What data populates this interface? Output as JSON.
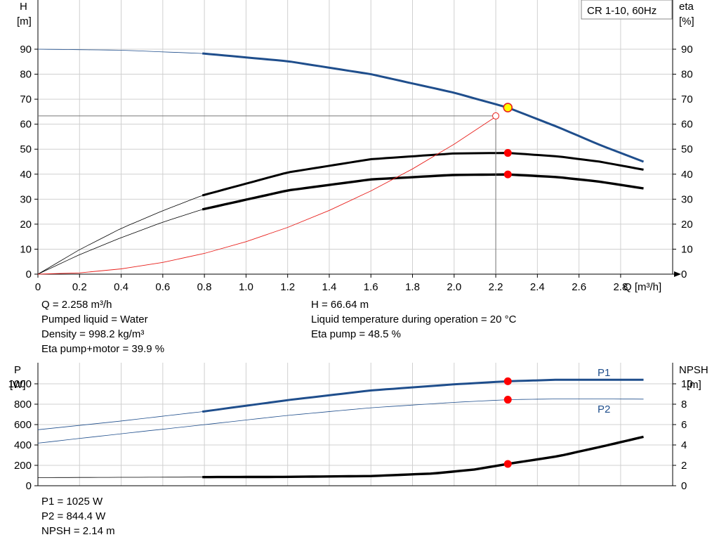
{
  "pump_label": "CR 1-10, 60Hz",
  "chart_data": [
    {
      "type": "line",
      "left_axis": {
        "label_top": "H",
        "label_unit": "[m]",
        "ylim": [
          0,
          100
        ],
        "ticks": [
          0,
          10,
          20,
          30,
          40,
          50,
          60,
          70,
          80,
          90
        ]
      },
      "right_axis": {
        "label_top": "eta",
        "label_unit": "[%]",
        "ylim": [
          0,
          100
        ],
        "ticks": [
          0,
          10,
          20,
          30,
          40,
          50,
          60,
          70,
          80,
          90
        ]
      },
      "x_axis": {
        "label": "Q [m³/h]",
        "xlim": [
          0,
          3.05
        ],
        "ticks": [
          "0",
          "0.2",
          "0.4",
          "0.6",
          "0.8",
          "1.0",
          "1.2",
          "1.4",
          "1.6",
          "1.8",
          "2.0",
          "2.2",
          "2.4",
          "2.6",
          "2.8"
        ]
      },
      "grid": true,
      "series": [
        {
          "key": "H",
          "color": "#1f4e8c",
          "x": [
            0,
            0.4,
            0.79,
            1.2,
            1.6,
            2.0,
            2.258,
            2.5,
            2.7,
            2.91
          ],
          "y": [
            90,
            89.6,
            88.3,
            85.2,
            80,
            72.6,
            66.64,
            58.8,
            51.7,
            45
          ],
          "thick_from": 0.79,
          "thick_to": 2.91
        },
        {
          "key": "eta_pump",
          "color": "#000000",
          "x": [
            0,
            0.2,
            0.4,
            0.6,
            0.79,
            1.2,
            1.6,
            2.0,
            2.258,
            2.5,
            2.7,
            2.91
          ],
          "y": [
            0,
            9.8,
            18.3,
            25.4,
            31.5,
            40.7,
            46,
            48.3,
            48.5,
            47.1,
            45,
            41.8
          ],
          "thick_from": 0.79,
          "thick_to": 2.91
        },
        {
          "key": "eta_pump_motor",
          "color": "#000000",
          "x": [
            0,
            0.2,
            0.4,
            0.6,
            0.79,
            1.2,
            1.6,
            2.0,
            2.258,
            2.5,
            2.7,
            2.91
          ],
          "y": [
            0,
            7.8,
            14.6,
            20.8,
            25.9,
            33.5,
            37.9,
            39.7,
            39.9,
            38.8,
            37,
            34.3
          ],
          "thick_from": 0.79,
          "thick_to": 2.91,
          "thick_weight": 3.4
        },
        {
          "key": "system_curve",
          "color": "#e8201c",
          "x": [
            0,
            0.2,
            0.4,
            0.6,
            0.8,
            1.0,
            1.2,
            1.4,
            1.6,
            1.8,
            2.0,
            2.2
          ],
          "y": [
            0,
            0.5,
            2.1,
            4.7,
            8.3,
            13,
            18.7,
            25.5,
            33.3,
            42.1,
            52,
            63
          ]
        }
      ],
      "duty_point": {
        "x": 2.258,
        "H": 66.64,
        "eta_pump": 48.5,
        "eta_pump_motor": 39.9
      },
      "requested_point": {
        "x": 2.2,
        "y": 63.3
      }
    },
    {
      "type": "line",
      "left_axis": {
        "label_top": "P",
        "label_unit": "[W]",
        "ylim": [
          0,
          1050
        ],
        "ticks": [
          0,
          200,
          400,
          600,
          800,
          1000
        ]
      },
      "right_axis": {
        "label_top": "NPSH",
        "label_unit": "[m]",
        "ylim": [
          0,
          10.5
        ],
        "ticks": [
          0,
          2,
          4,
          6,
          8,
          10
        ]
      },
      "x_axis": {
        "xlim": [
          0,
          3.05
        ]
      },
      "grid": true,
      "series": [
        {
          "key": "P1",
          "name": "P1",
          "axis": "left",
          "color": "#1f4e8c",
          "x": [
            0,
            0.4,
            0.79,
            1.2,
            1.6,
            2.0,
            2.258,
            2.5,
            2.91
          ],
          "y": [
            550,
            635,
            727,
            840,
            935,
            995,
            1025,
            1040,
            1040
          ],
          "thick_from": 0.79,
          "thick_to": 2.91
        },
        {
          "key": "P2",
          "name": "P2",
          "axis": "left",
          "color": "#1f4e8c",
          "x": [
            0,
            0.4,
            0.79,
            1.2,
            1.6,
            2.0,
            2.258,
            2.5,
            2.91
          ],
          "y": [
            418,
            510,
            597,
            690,
            765,
            818,
            844.4,
            852,
            850
          ]
        },
        {
          "key": "NPSH",
          "axis": "right",
          "color": "#000000",
          "x": [
            0,
            0.79,
            1.2,
            1.6,
            1.9,
            2.1,
            2.258,
            2.5,
            2.7,
            2.91
          ],
          "y": [
            0.8,
            0.85,
            0.87,
            0.95,
            1.2,
            1.6,
            2.14,
            2.9,
            3.8,
            4.8
          ],
          "thick_from": 0.79,
          "thick_to": 2.91,
          "thick_weight": 3.4
        }
      ],
      "duty_point": {
        "x": 2.258,
        "P1": 1025,
        "P2": 844.4,
        "NPSH": 2.14
      }
    }
  ],
  "info_top_left": [
    "Q = 2.258 m³/h",
    "Pumped liquid = Water",
    "Density = 998.2 kg/m³",
    "Eta pump+motor = 39.9 %"
  ],
  "info_top_right": [
    "H = 66.64 m",
    "Liquid temperature during operation = 20 °C",
    "Eta pump = 48.5 %"
  ],
  "info_bottom": [
    "P1 = 1025 W",
    "P2 = 844.4 W",
    "NPSH = 2.14 m"
  ]
}
